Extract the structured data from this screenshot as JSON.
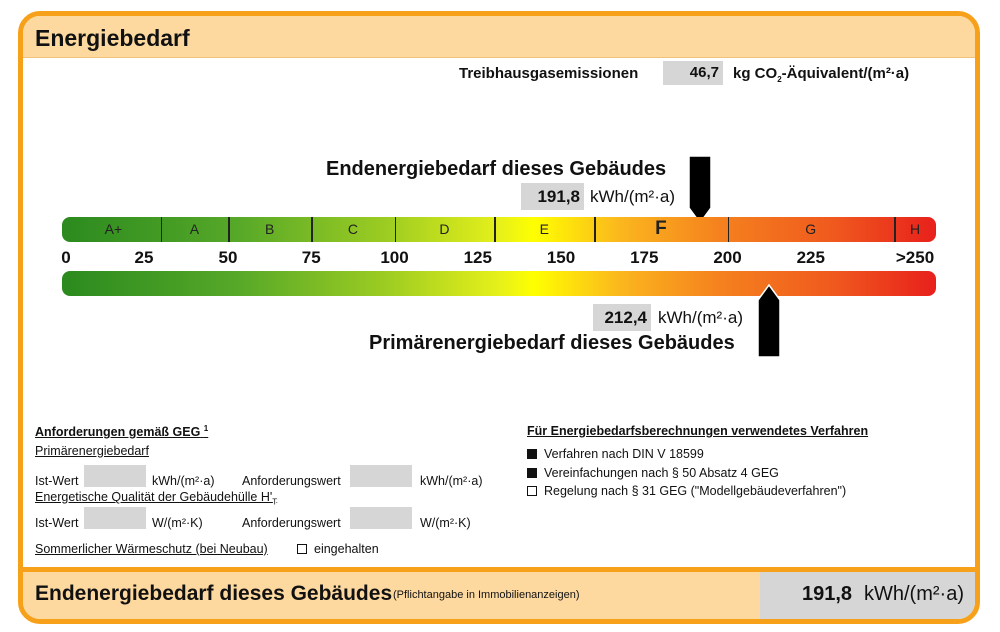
{
  "title": "Energiebedarf",
  "emissions": {
    "label": "Treibhausgasemissionen",
    "value": "46,7",
    "unit_prefix": "kg CO",
    "unit_sub": "2",
    "unit_suffix": "-Äquivalent/(m²·a)"
  },
  "end_energy": {
    "label": "Endenergiebedarf dieses Gebäudes",
    "value": "191,8",
    "value_num": 191.8,
    "unit": "kWh/(m²·a)"
  },
  "primary_energy": {
    "label": "Primärenergiebedarf dieses Gebäudes",
    "value": "212,4",
    "value_num": 212.4,
    "unit": "kWh/(m²·a)"
  },
  "scale": {
    "classes": [
      "A+",
      "A",
      "B",
      "C",
      "D",
      "E",
      "F",
      "G",
      "H"
    ],
    "class_bounds": [
      0,
      30,
      50,
      75,
      100,
      130,
      160,
      200,
      250
    ],
    "current_class": "F",
    "ticks": [
      "0",
      "25",
      "50",
      "75",
      "100",
      "125",
      "150",
      "175",
      "200",
      "225",
      ">250"
    ],
    "colors": {
      "green": "#2b8a1e",
      "yellow": "#ffff00",
      "orange": "#f5821e",
      "red": "#e8201c"
    }
  },
  "requirements": {
    "heading": "Anforderungen gemäß GEG",
    "footnote": "1",
    "primary_label": "Primärenergiebedarf",
    "ist_wert": "Ist-Wert",
    "anforderungswert": "Anforderungswert",
    "unit_kwh": "kWh/(m²·a)",
    "envelope_label": "Energetische Qualität der Gebäudehülle H'",
    "envelope_sub": "T",
    "unit_w": "W/(m²·K)",
    "summer_label": "Sommerlicher Wärmeschutz (bei Neubau)",
    "summer_check": "eingehalten",
    "summer_checked": false
  },
  "methods": {
    "heading": "Für Energiebedarfsberechnungen verwendetes Verfahren",
    "items": [
      {
        "label": "Verfahren nach DIN V 18599",
        "checked": true
      },
      {
        "label": "Vereinfachungen nach § 50 Absatz 4 GEG",
        "checked": true
      },
      {
        "label": "Regelung nach § 31 GEG (\"Modellgebäudeverfahren\")",
        "checked": false
      }
    ]
  },
  "footer": {
    "label": "Endenergiebedarf dieses Gebäudes",
    "note": "(Pflichtangabe in Immobilienanzeigen)",
    "value": "191,8",
    "unit": "kWh/(m²·a)"
  }
}
